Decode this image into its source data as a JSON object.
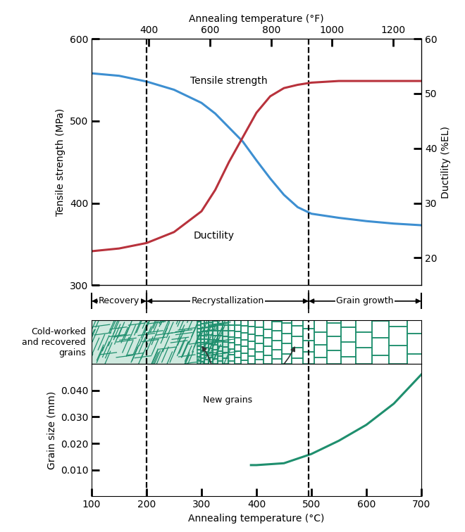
{
  "chart_data": [
    {
      "type": "line",
      "xlim": [
        100,
        700
      ],
      "x2label": "Annealing temperature (°F)",
      "x2lim": [
        212,
        1292
      ],
      "x2ticks": [
        400,
        600,
        800,
        1000,
        1200
      ],
      "ylabel": "Tensile strength (MPa)",
      "ylim": [
        300,
        600
      ],
      "yticks": [
        300,
        400,
        500,
        600
      ],
      "y2label": "Ductility (%EL)",
      "y2lim": [
        15,
        60
      ],
      "y2ticks": [
        20,
        30,
        40,
        50,
        60
      ],
      "x": [
        100,
        150,
        200,
        250,
        300,
        325,
        350,
        375,
        400,
        425,
        450,
        475,
        500,
        550,
        600,
        650,
        700
      ],
      "series": [
        {
          "name": "Tensile strength",
          "color": "#3d8fd1",
          "values": [
            558,
            555,
            548,
            538,
            522,
            509,
            492,
            475,
            452,
            430,
            410,
            395,
            387,
            382,
            378,
            375,
            373
          ]
        },
        {
          "name": "Ductility",
          "color": "#b8323c",
          "axis": "y2",
          "values": [
            21.2,
            21.7,
            22.7,
            24.7,
            28.5,
            32.4,
            37.5,
            42,
            46.5,
            49.5,
            51,
            51.6,
            52,
            52.3,
            52.3,
            52.3,
            52.3
          ]
        }
      ]
    },
    {
      "type": "line",
      "xlabel": "Annealing temperature (°C)",
      "xlim": [
        100,
        700
      ],
      "xticks": [
        100,
        200,
        300,
        400,
        500,
        600,
        700
      ],
      "ylabel": "Grain size (mm)",
      "ylim": [
        0,
        0.05
      ],
      "yticks": [
        {
          "value": 0.01,
          "label": "0.010"
        },
        {
          "value": 0.02,
          "label": "0.020"
        },
        {
          "value": 0.03,
          "label": "0.030"
        },
        {
          "value": 0.04,
          "label": "0.040"
        }
      ],
      "x": [
        390,
        400,
        450,
        500,
        550,
        600,
        650,
        700
      ],
      "values": [
        0.0118,
        0.0118,
        0.0125,
        0.016,
        0.021,
        0.027,
        0.035,
        0.046
      ],
      "color": "#1f8f6e"
    }
  ],
  "diagram": {
    "stages": [
      {
        "name": "Recovery",
        "range": [
          100,
          200
        ]
      },
      {
        "name": "Recrystallization",
        "range": [
          200,
          495
        ]
      },
      {
        "name": "Grain growth",
        "range": [
          495,
          700
        ]
      }
    ],
    "microstructure_label": "Cold-worked\nand recovered\ngrains",
    "new_grains_label": "New grains"
  }
}
